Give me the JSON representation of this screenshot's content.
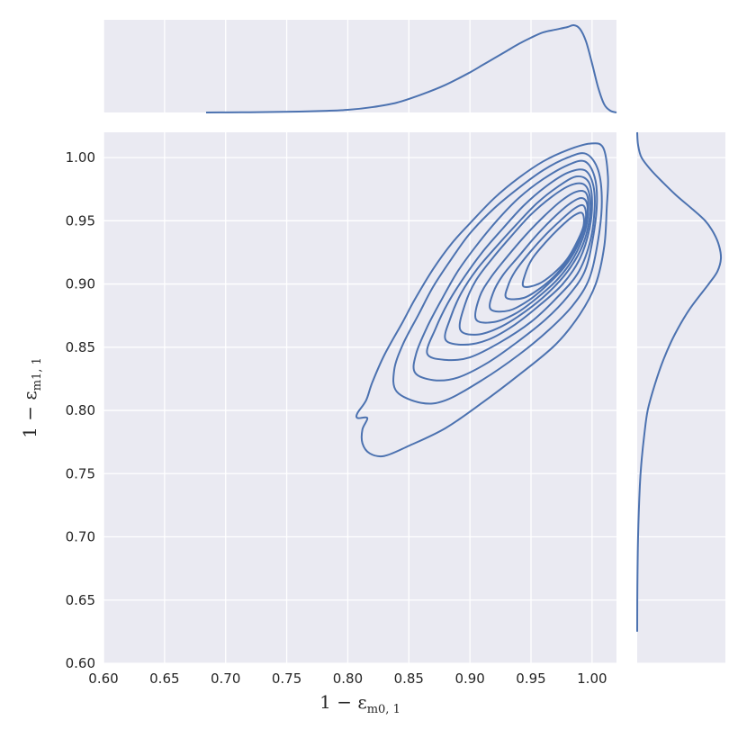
{
  "chart_data": {
    "type": "kde-joint",
    "grid": true,
    "colors": {
      "background": "#eaeaf2",
      "grid": "#ffffff",
      "line": "#4c72b0",
      "text": "#262626"
    },
    "x_axis": {
      "label_main": "1 − ε",
      "label_sub": "m0, 1",
      "lim": [
        0.6,
        1.02
      ],
      "ticks": [
        0.6,
        0.65,
        0.7,
        0.75,
        0.8,
        0.85,
        0.9,
        0.95,
        1.0
      ],
      "tick_labels": [
        "0.60",
        "0.65",
        "0.70",
        "0.75",
        "0.80",
        "0.85",
        "0.90",
        "0.95",
        "1.00"
      ]
    },
    "y_axis": {
      "label_main": "1 − ε",
      "label_sub": "m1, 1",
      "lim": [
        0.6,
        1.02
      ],
      "ticks": [
        0.6,
        0.65,
        0.7,
        0.75,
        0.8,
        0.85,
        0.9,
        0.95,
        1.0
      ],
      "tick_labels": [
        "0.60",
        "0.65",
        "0.70",
        "0.75",
        "0.80",
        "0.85",
        "0.90",
        "0.95",
        "1.00"
      ]
    },
    "marginal_x": {
      "x": [
        0.684,
        0.7,
        0.72,
        0.74,
        0.76,
        0.78,
        0.8,
        0.82,
        0.84,
        0.86,
        0.88,
        0.9,
        0.91,
        0.92,
        0.93,
        0.94,
        0.95,
        0.96,
        0.97,
        0.98,
        0.985,
        0.99,
        0.995,
        1.0,
        1.005,
        1.01,
        1.015,
        1.02
      ],
      "density": [
        0.0,
        0.001,
        0.003,
        0.006,
        0.01,
        0.018,
        0.03,
        0.06,
        0.11,
        0.2,
        0.31,
        0.45,
        0.53,
        0.61,
        0.69,
        0.77,
        0.84,
        0.9,
        0.93,
        0.96,
        0.98,
        0.94,
        0.8,
        0.55,
        0.28,
        0.09,
        0.02,
        0.0
      ]
    },
    "marginal_y": {
      "y": [
        0.625,
        0.66,
        0.7,
        0.74,
        0.76,
        0.78,
        0.8,
        0.82,
        0.84,
        0.86,
        0.88,
        0.9,
        0.91,
        0.92,
        0.93,
        0.94,
        0.95,
        0.96,
        0.97,
        0.98,
        0.99,
        1.0,
        1.01,
        1.02
      ],
      "density": [
        0.0,
        0.002,
        0.01,
        0.03,
        0.05,
        0.08,
        0.12,
        0.2,
        0.3,
        0.43,
        0.6,
        0.82,
        0.92,
        0.96,
        0.94,
        0.88,
        0.78,
        0.62,
        0.45,
        0.3,
        0.16,
        0.05,
        0.01,
        0.0
      ]
    },
    "contours": [
      {
        "level": 1,
        "points": [
          [
            0.812,
            0.774
          ],
          [
            0.818,
            0.766
          ],
          [
            0.83,
            0.764
          ],
          [
            0.85,
            0.772
          ],
          [
            0.88,
            0.786
          ],
          [
            0.91,
            0.806
          ],
          [
            0.94,
            0.828
          ],
          [
            0.97,
            0.852
          ],
          [
            0.99,
            0.876
          ],
          [
            1.003,
            0.9
          ],
          [
            1.01,
            0.93
          ],
          [
            1.012,
            0.96
          ],
          [
            1.013,
            0.985
          ],
          [
            1.009,
            1.008
          ],
          [
            0.998,
            1.011
          ],
          [
            0.98,
            1.006
          ],
          [
            0.96,
            0.997
          ],
          [
            0.94,
            0.984
          ],
          [
            0.92,
            0.968
          ],
          [
            0.9,
            0.948
          ],
          [
            0.885,
            0.932
          ],
          [
            0.87,
            0.912
          ],
          [
            0.855,
            0.888
          ],
          [
            0.845,
            0.87
          ],
          [
            0.83,
            0.844
          ],
          [
            0.82,
            0.822
          ],
          [
            0.815,
            0.808
          ],
          [
            0.808,
            0.798
          ],
          [
            0.808,
            0.794
          ],
          [
            0.816,
            0.794
          ],
          [
            0.812,
            0.785
          ]
        ]
      },
      {
        "level": 2,
        "points": [
          [
            0.84,
            0.815
          ],
          [
            0.86,
            0.806
          ],
          [
            0.88,
            0.808
          ],
          [
            0.91,
            0.824
          ],
          [
            0.94,
            0.844
          ],
          [
            0.965,
            0.864
          ],
          [
            0.985,
            0.884
          ],
          [
            0.998,
            0.905
          ],
          [
            1.005,
            0.935
          ],
          [
            1.008,
            0.965
          ],
          [
            1.005,
            0.99
          ],
          [
            0.995,
            1.003
          ],
          [
            0.98,
            1.0
          ],
          [
            0.96,
            0.99
          ],
          [
            0.94,
            0.976
          ],
          [
            0.92,
            0.96
          ],
          [
            0.9,
            0.94
          ],
          [
            0.885,
            0.92
          ],
          [
            0.87,
            0.898
          ],
          [
            0.858,
            0.876
          ],
          [
            0.845,
            0.852
          ],
          [
            0.838,
            0.832
          ]
        ]
      },
      {
        "level": 3,
        "points": [
          [
            0.855,
            0.83
          ],
          [
            0.87,
            0.824
          ],
          [
            0.89,
            0.826
          ],
          [
            0.915,
            0.838
          ],
          [
            0.94,
            0.855
          ],
          [
            0.962,
            0.872
          ],
          [
            0.98,
            0.89
          ],
          [
            0.994,
            0.91
          ],
          [
            1.001,
            0.938
          ],
          [
            1.004,
            0.965
          ],
          [
            1.002,
            0.985
          ],
          [
            0.994,
            0.997
          ],
          [
            0.98,
            0.994
          ],
          [
            0.96,
            0.983
          ],
          [
            0.94,
            0.968
          ],
          [
            0.922,
            0.95
          ],
          [
            0.905,
            0.93
          ],
          [
            0.89,
            0.91
          ],
          [
            0.877,
            0.888
          ],
          [
            0.865,
            0.866
          ],
          [
            0.856,
            0.845
          ]
        ]
      },
      {
        "level": 4,
        "points": [
          [
            0.865,
            0.845
          ],
          [
            0.88,
            0.84
          ],
          [
            0.9,
            0.842
          ],
          [
            0.925,
            0.854
          ],
          [
            0.95,
            0.87
          ],
          [
            0.97,
            0.888
          ],
          [
            0.988,
            0.908
          ],
          [
            0.998,
            0.932
          ],
          [
            1.002,
            0.958
          ],
          [
            1.001,
            0.978
          ],
          [
            0.994,
            0.99
          ],
          [
            0.98,
            0.988
          ],
          [
            0.962,
            0.977
          ],
          [
            0.944,
            0.962
          ],
          [
            0.927,
            0.944
          ],
          [
            0.91,
            0.925
          ],
          [
            0.895,
            0.905
          ],
          [
            0.882,
            0.885
          ],
          [
            0.872,
            0.865
          ]
        ]
      },
      {
        "level": 5,
        "points": [
          [
            0.88,
            0.856
          ],
          [
            0.895,
            0.852
          ],
          [
            0.915,
            0.856
          ],
          [
            0.937,
            0.868
          ],
          [
            0.958,
            0.884
          ],
          [
            0.976,
            0.9
          ],
          [
            0.99,
            0.92
          ],
          [
            0.998,
            0.944
          ],
          [
            1.0,
            0.966
          ],
          [
            0.997,
            0.981
          ],
          [
            0.987,
            0.985
          ],
          [
            0.972,
            0.977
          ],
          [
            0.955,
            0.964
          ],
          [
            0.938,
            0.947
          ],
          [
            0.922,
            0.93
          ],
          [
            0.906,
            0.912
          ],
          [
            0.893,
            0.893
          ],
          [
            0.884,
            0.873
          ]
        ]
      },
      {
        "level": 6,
        "points": [
          [
            0.892,
            0.864
          ],
          [
            0.906,
            0.86
          ],
          [
            0.925,
            0.866
          ],
          [
            0.945,
            0.878
          ],
          [
            0.964,
            0.893
          ],
          [
            0.98,
            0.91
          ],
          [
            0.992,
            0.93
          ],
          [
            0.998,
            0.952
          ],
          [
            0.998,
            0.97
          ],
          [
            0.993,
            0.979
          ],
          [
            0.982,
            0.978
          ],
          [
            0.967,
            0.969
          ],
          [
            0.95,
            0.955
          ],
          [
            0.934,
            0.938
          ],
          [
            0.919,
            0.921
          ],
          [
            0.905,
            0.903
          ],
          [
            0.896,
            0.884
          ]
        ]
      },
      {
        "level": 7,
        "points": [
          [
            0.905,
            0.872
          ],
          [
            0.92,
            0.87
          ],
          [
            0.938,
            0.877
          ],
          [
            0.955,
            0.889
          ],
          [
            0.972,
            0.904
          ],
          [
            0.985,
            0.921
          ],
          [
            0.994,
            0.941
          ],
          [
            0.997,
            0.96
          ],
          [
            0.995,
            0.972
          ],
          [
            0.987,
            0.973
          ],
          [
            0.975,
            0.966
          ],
          [
            0.96,
            0.953
          ],
          [
            0.945,
            0.938
          ],
          [
            0.93,
            0.921
          ],
          [
            0.917,
            0.905
          ],
          [
            0.908,
            0.89
          ]
        ]
      },
      {
        "level": 8,
        "points": [
          [
            0.917,
            0.88
          ],
          [
            0.932,
            0.879
          ],
          [
            0.948,
            0.887
          ],
          [
            0.963,
            0.899
          ],
          [
            0.977,
            0.913
          ],
          [
            0.988,
            0.93
          ],
          [
            0.995,
            0.949
          ],
          [
            0.996,
            0.963
          ],
          [
            0.991,
            0.968
          ],
          [
            0.981,
            0.963
          ],
          [
            0.968,
            0.952
          ],
          [
            0.954,
            0.938
          ],
          [
            0.94,
            0.922
          ],
          [
            0.927,
            0.907
          ],
          [
            0.919,
            0.893
          ]
        ]
      },
      {
        "level": 9,
        "points": [
          [
            0.93,
            0.889
          ],
          [
            0.944,
            0.889
          ],
          [
            0.958,
            0.897
          ],
          [
            0.971,
            0.908
          ],
          [
            0.982,
            0.922
          ],
          [
            0.991,
            0.938
          ],
          [
            0.995,
            0.953
          ],
          [
            0.993,
            0.962
          ],
          [
            0.986,
            0.96
          ],
          [
            0.975,
            0.951
          ],
          [
            0.962,
            0.939
          ],
          [
            0.949,
            0.925
          ],
          [
            0.937,
            0.91
          ],
          [
            0.931,
            0.898
          ]
        ]
      },
      {
        "level": 10,
        "points": [
          [
            0.944,
            0.898
          ],
          [
            0.956,
            0.9
          ],
          [
            0.968,
            0.908
          ],
          [
            0.979,
            0.919
          ],
          [
            0.987,
            0.932
          ],
          [
            0.993,
            0.946
          ],
          [
            0.992,
            0.956
          ],
          [
            0.985,
            0.954
          ],
          [
            0.974,
            0.945
          ],
          [
            0.962,
            0.933
          ],
          [
            0.951,
            0.92
          ],
          [
            0.945,
            0.907
          ]
        ]
      }
    ]
  }
}
